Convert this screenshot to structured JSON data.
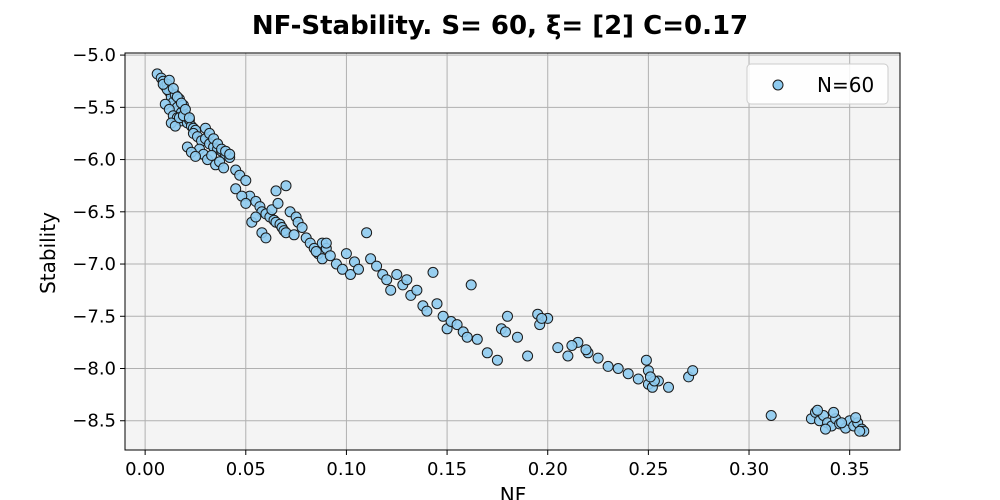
{
  "chart_data": {
    "type": "scatter",
    "title": "NF-Stability. S= 60, ξ= [2] C=0.17",
    "xlabel": "NF",
    "ylabel": "Stability",
    "xlim": [
      -0.01,
      0.375
    ],
    "ylim": [
      -8.78,
      -4.98
    ],
    "xticks": [
      0.0,
      0.05,
      0.1,
      0.15,
      0.2,
      0.25,
      0.3,
      0.35
    ],
    "xtick_labels": [
      "0.00",
      "0.05",
      "0.10",
      "0.15",
      "0.20",
      "0.25",
      "0.30",
      "0.35"
    ],
    "yticks": [
      -5.0,
      -5.5,
      -6.0,
      -6.5,
      -7.0,
      -7.5,
      -8.0,
      -8.5
    ],
    "ytick_labels": [
      "−5.0",
      "−5.5",
      "−6.0",
      "−6.5",
      "−7.0",
      "−7.5",
      "−8.0",
      "−8.5"
    ],
    "grid": true,
    "legend_position": "top-right",
    "colors": {
      "marker_fill": "#8ecbf0",
      "marker_edge": "#1a1a1a",
      "plot_background": "#f4f4f4"
    },
    "series": [
      {
        "name": "N=60",
        "x": [
          0.006,
          0.008,
          0.009,
          0.01,
          0.011,
          0.012,
          0.013,
          0.014,
          0.015,
          0.016,
          0.017,
          0.018,
          0.019,
          0.01,
          0.012,
          0.014,
          0.016,
          0.018,
          0.02,
          0.021,
          0.022,
          0.023,
          0.024,
          0.025,
          0.013,
          0.015,
          0.017,
          0.019,
          0.011,
          0.009,
          0.012,
          0.014,
          0.016,
          0.018,
          0.02,
          0.022,
          0.024,
          0.026,
          0.028,
          0.03,
          0.032,
          0.034,
          0.036,
          0.038,
          0.04,
          0.042,
          0.027,
          0.029,
          0.031,
          0.033,
          0.035,
          0.037,
          0.039,
          0.021,
          0.023,
          0.025,
          0.03,
          0.032,
          0.034,
          0.036,
          0.038,
          0.04,
          0.042,
          0.045,
          0.047,
          0.05,
          0.052,
          0.055,
          0.057,
          0.058,
          0.06,
          0.062,
          0.063,
          0.064,
          0.065,
          0.066,
          0.067,
          0.068,
          0.069,
          0.07,
          0.072,
          0.074,
          0.075,
          0.076,
          0.078,
          0.08,
          0.082,
          0.084,
          0.086,
          0.088,
          0.09,
          0.045,
          0.048,
          0.05,
          0.053,
          0.055,
          0.058,
          0.06,
          0.065,
          0.07,
          0.085,
          0.088,
          0.09,
          0.092,
          0.095,
          0.098,
          0.1,
          0.102,
          0.104,
          0.106,
          0.11,
          0.112,
          0.115,
          0.118,
          0.12,
          0.122,
          0.125,
          0.128,
          0.13,
          0.132,
          0.135,
          0.138,
          0.14,
          0.143,
          0.145,
          0.148,
          0.15,
          0.152,
          0.155,
          0.158,
          0.16,
          0.162,
          0.165,
          0.17,
          0.175,
          0.18,
          0.185,
          0.19,
          0.195,
          0.2,
          0.205,
          0.21,
          0.215,
          0.22,
          0.225,
          0.23,
          0.235,
          0.24,
          0.245,
          0.25,
          0.255,
          0.26,
          0.27,
          0.272,
          0.177,
          0.179,
          0.196,
          0.197,
          0.212,
          0.219,
          0.252,
          0.253,
          0.249,
          0.25,
          0.251,
          0.311,
          0.331,
          0.333,
          0.335,
          0.337,
          0.339,
          0.341,
          0.343,
          0.345,
          0.348,
          0.35,
          0.352,
          0.354,
          0.356,
          0.357,
          0.334,
          0.338,
          0.342,
          0.346,
          0.353,
          0.355
        ],
        "y": [
          -5.18,
          -5.22,
          -5.25,
          -5.3,
          -5.28,
          -5.35,
          -5.4,
          -5.45,
          -5.38,
          -5.5,
          -5.42,
          -5.55,
          -5.48,
          -5.47,
          -5.52,
          -5.58,
          -5.6,
          -5.63,
          -5.57,
          -5.65,
          -5.62,
          -5.68,
          -5.7,
          -5.72,
          -5.65,
          -5.68,
          -5.6,
          -5.58,
          -5.33,
          -5.28,
          -5.24,
          -5.32,
          -5.4,
          -5.46,
          -5.52,
          -5.6,
          -5.75,
          -5.78,
          -5.82,
          -5.8,
          -5.85,
          -5.88,
          -5.9,
          -5.92,
          -5.95,
          -5.98,
          -5.9,
          -5.95,
          -6.0,
          -5.96,
          -6.05,
          -6.02,
          -6.08,
          -5.88,
          -5.93,
          -5.97,
          -5.7,
          -5.75,
          -5.8,
          -5.85,
          -5.9,
          -5.92,
          -5.95,
          -6.1,
          -6.15,
          -6.2,
          -6.35,
          -6.4,
          -6.45,
          -6.5,
          -6.52,
          -6.55,
          -6.48,
          -6.58,
          -6.6,
          -6.42,
          -6.62,
          -6.65,
          -6.68,
          -6.7,
          -6.5,
          -6.72,
          -6.55,
          -6.6,
          -6.65,
          -6.75,
          -6.8,
          -6.85,
          -6.9,
          -6.8,
          -6.85,
          -6.28,
          -6.35,
          -6.42,
          -6.6,
          -6.55,
          -6.7,
          -6.75,
          -6.3,
          -6.25,
          -6.88,
          -6.95,
          -6.8,
          -6.92,
          -7.0,
          -7.05,
          -6.9,
          -7.1,
          -6.98,
          -7.05,
          -6.7,
          -6.95,
          -7.02,
          -7.1,
          -7.15,
          -7.25,
          -7.1,
          -7.2,
          -7.15,
          -7.3,
          -7.25,
          -7.4,
          -7.45,
          -7.08,
          -7.38,
          -7.5,
          -7.62,
          -7.55,
          -7.58,
          -7.65,
          -7.7,
          -7.2,
          -7.72,
          -7.85,
          -7.92,
          -7.5,
          -7.7,
          -7.88,
          -7.48,
          -7.52,
          -7.8,
          -7.88,
          -7.75,
          -7.85,
          -7.9,
          -7.98,
          -8.0,
          -8.05,
          -8.1,
          -8.15,
          -8.12,
          -8.18,
          -8.08,
          -8.02,
          -7.62,
          -7.65,
          -7.58,
          -7.52,
          -7.78,
          -7.82,
          -8.18,
          -8.12,
          -7.92,
          -8.02,
          -8.08,
          -8.45,
          -8.48,
          -8.42,
          -8.5,
          -8.45,
          -8.52,
          -8.55,
          -8.48,
          -8.53,
          -8.57,
          -8.5,
          -8.55,
          -8.52,
          -8.58,
          -8.6,
          -8.4,
          -8.58,
          -8.42,
          -8.52,
          -8.47,
          -8.6
        ]
      }
    ]
  }
}
